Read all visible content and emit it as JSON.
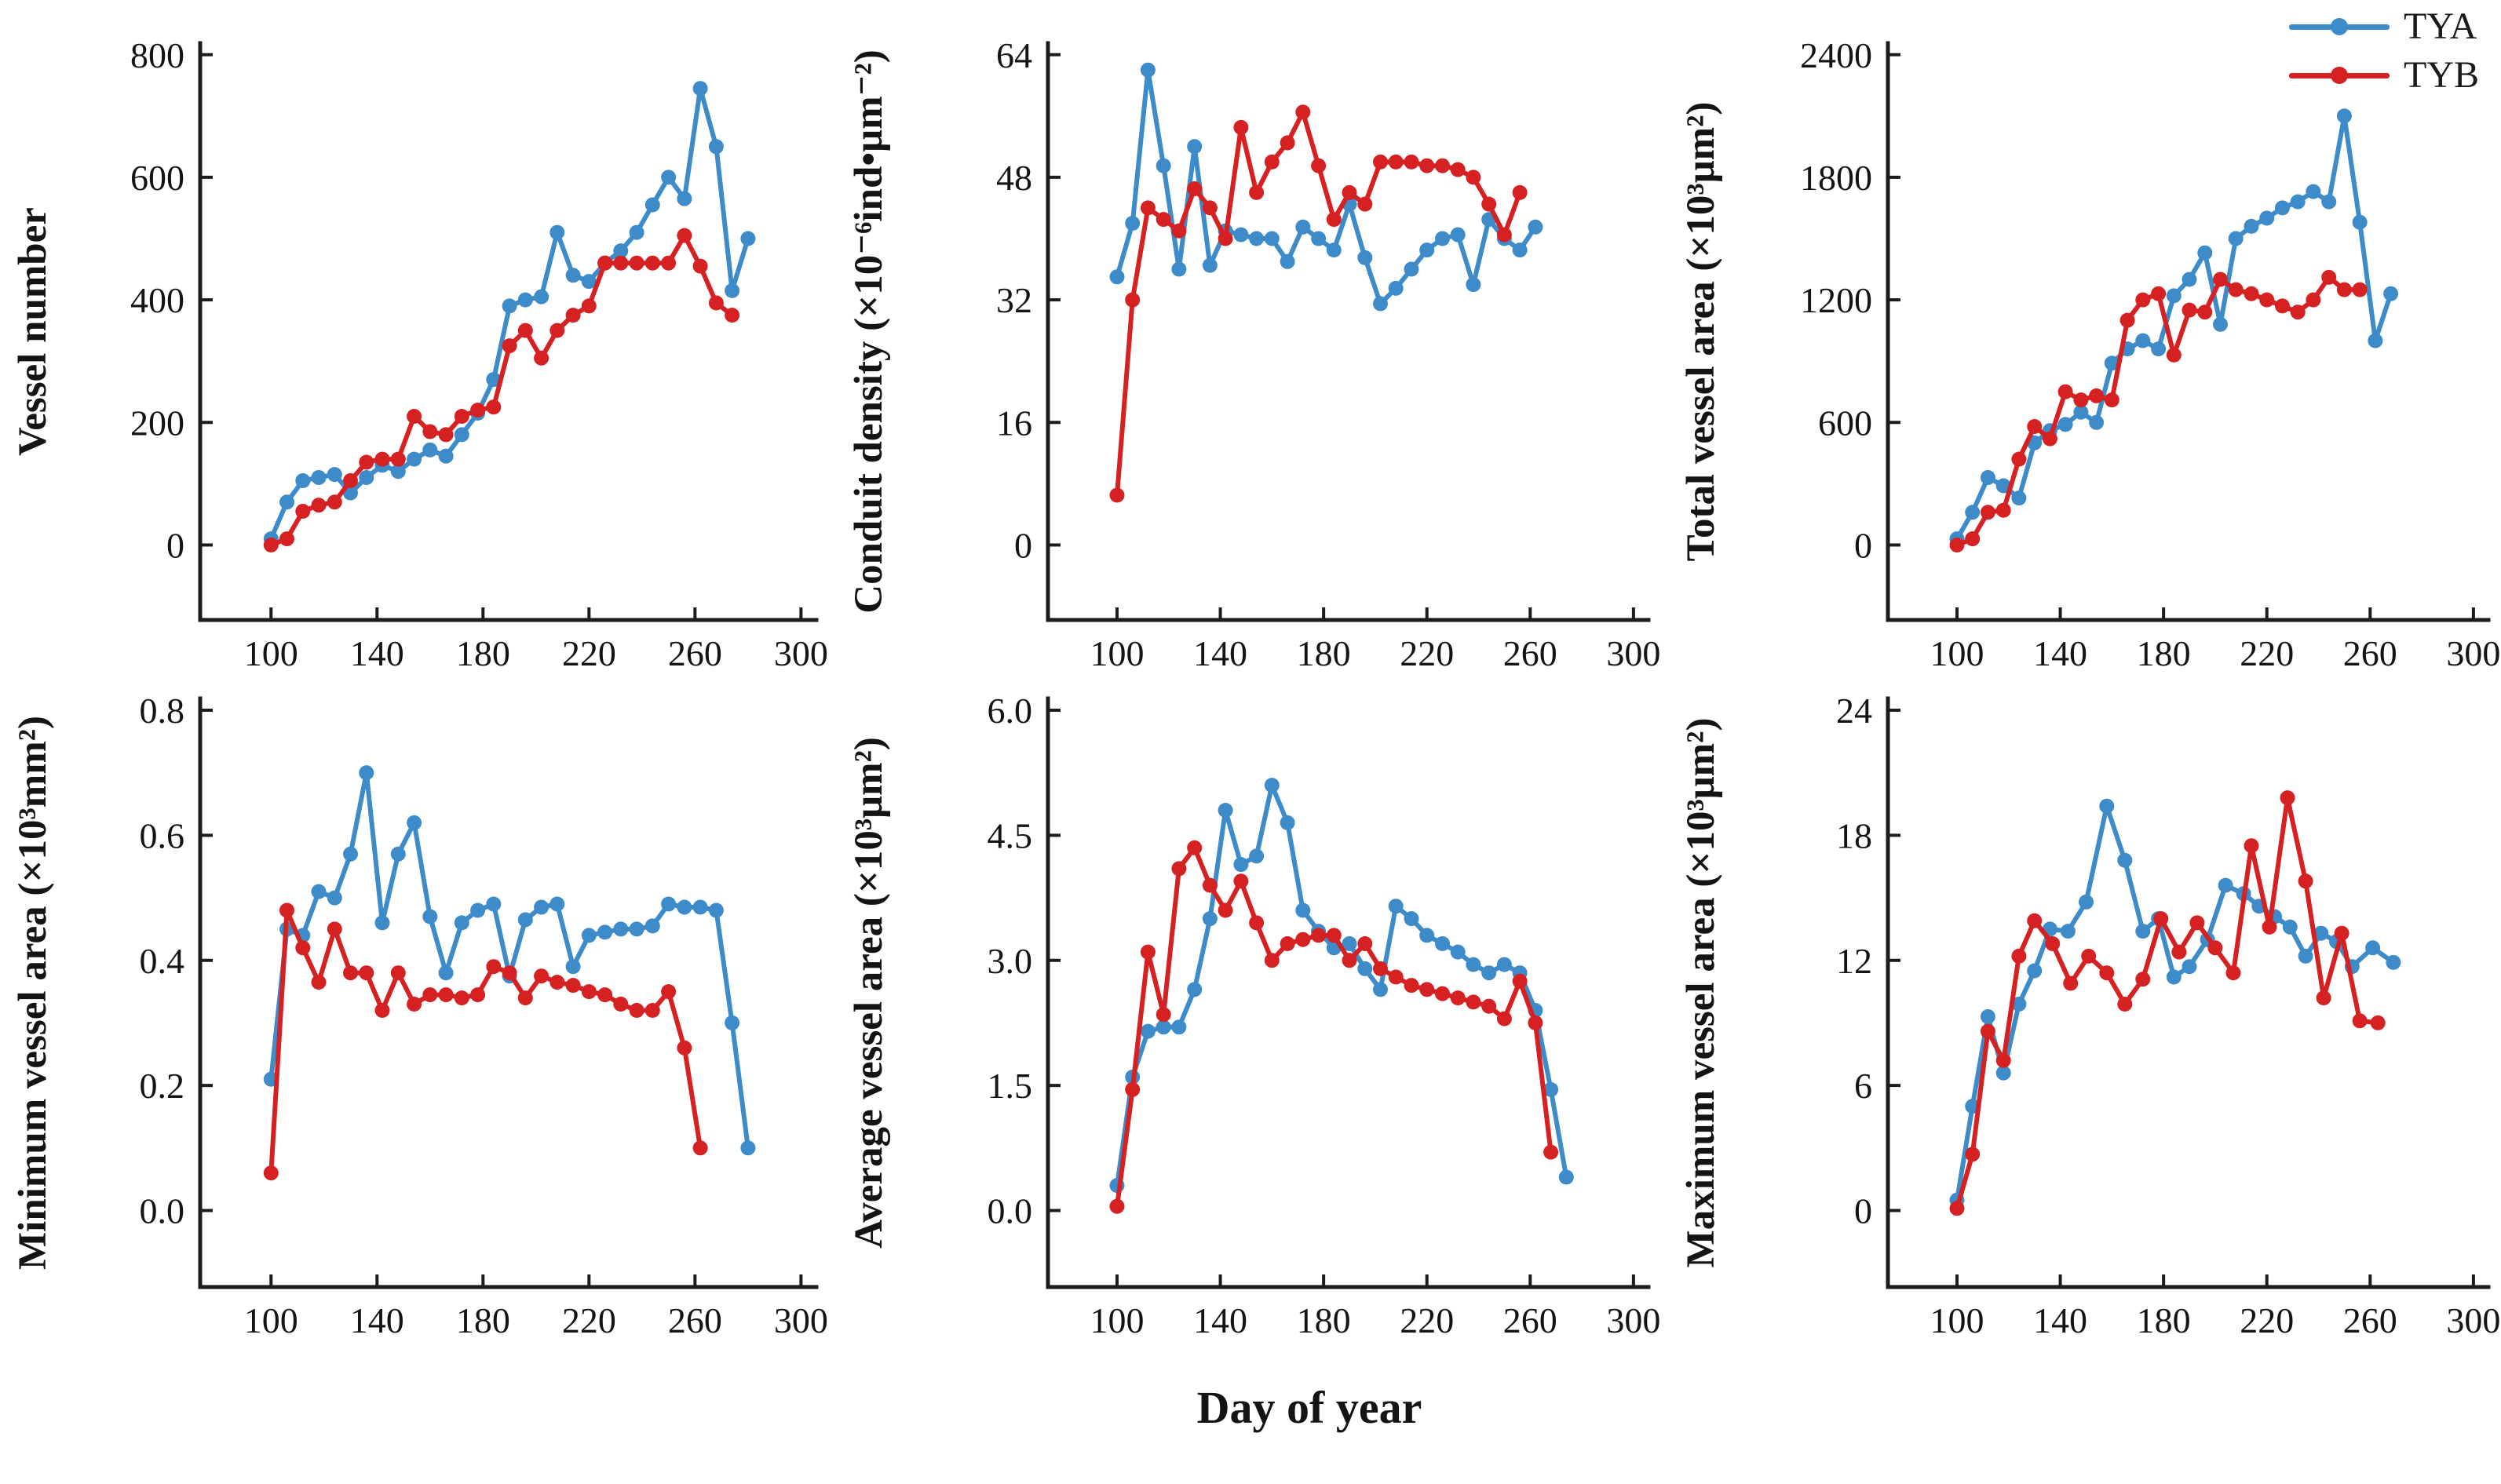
{
  "figure": {
    "background": "#ffffff"
  },
  "xlabel": "Day of year",
  "legend": {
    "items": [
      {
        "label": "TYA",
        "color_key": "tya"
      },
      {
        "label": "TYB",
        "color_key": "tyb"
      }
    ]
  },
  "colors": {
    "tya": "#3d8bc8",
    "tyb": "#d62123",
    "axis": "#1c1c1c"
  },
  "x_ticks": [
    100,
    140,
    180,
    220,
    260,
    300
  ],
  "chart_data": [
    {
      "type": "line",
      "id": "vessel-number",
      "ylabel": "Vessel number",
      "xlabel": "Day of year",
      "ylim": [
        0,
        800
      ],
      "xlim": [
        72,
        306
      ],
      "yticks": [
        0,
        200,
        400,
        600,
        800
      ],
      "ytick_labels": [
        "0",
        "200",
        "400",
        "600",
        "800"
      ],
      "xtick_labels": [
        "100",
        "140",
        "180",
        "220",
        "260",
        "300"
      ],
      "grid": false,
      "series": [
        {
          "name": "TYA",
          "x": [
            100,
            106,
            112,
            118,
            124,
            130,
            136,
            142,
            148,
            154,
            160,
            166,
            172,
            178,
            184,
            190,
            196,
            202,
            208,
            214,
            220,
            226,
            232,
            238,
            244,
            250,
            256,
            262,
            268,
            274,
            280
          ],
          "y": [
            10,
            70,
            105,
            110,
            115,
            85,
            110,
            130,
            120,
            140,
            155,
            145,
            180,
            215,
            270,
            390,
            400,
            405,
            510,
            440,
            430,
            460,
            480,
            510,
            555,
            600,
            565,
            745,
            650,
            415,
            500
          ]
        },
        {
          "name": "TYB",
          "x": [
            100,
            106,
            112,
            118,
            124,
            130,
            136,
            142,
            148,
            154,
            160,
            166,
            172,
            178,
            184,
            190,
            196,
            202,
            208,
            214,
            220,
            226,
            232,
            238,
            244,
            250,
            256,
            262,
            268,
            274
          ],
          "y": [
            0,
            10,
            55,
            65,
            70,
            105,
            135,
            140,
            140,
            210,
            185,
            180,
            210,
            220,
            225,
            325,
            350,
            305,
            350,
            375,
            390,
            460,
            460,
            460,
            460,
            460,
            505,
            455,
            395,
            375
          ]
        }
      ]
    },
    {
      "type": "line",
      "id": "conduit-density",
      "ylabel": "Conduit density (×10⁻⁶ind•μm⁻²)",
      "xlabel": "Day of year",
      "ylim": [
        0,
        64
      ],
      "xlim": [
        72,
        306
      ],
      "yticks": [
        0,
        16,
        32,
        48,
        64
      ],
      "ytick_labels": [
        "0",
        "16",
        "32",
        "48",
        "64"
      ],
      "xtick_labels": [
        "100",
        "140",
        "180",
        "220",
        "260",
        "300"
      ],
      "grid": false,
      "series": [
        {
          "name": "TYA",
          "x": [
            100,
            106,
            112,
            118,
            124,
            130,
            136,
            142,
            148,
            154,
            160,
            166,
            172,
            178,
            184,
            190,
            196,
            202,
            208,
            214,
            220,
            226,
            232,
            238,
            244,
            250,
            256,
            262
          ],
          "y": [
            35,
            42,
            62,
            49.5,
            36,
            52,
            36.5,
            41,
            40.5,
            40,
            40,
            37,
            41.5,
            40,
            38.5,
            44.5,
            37.5,
            31.5,
            33.5,
            36,
            38.5,
            40,
            40.5,
            34,
            42.5,
            40,
            38.5,
            41.5
          ]
        },
        {
          "name": "TYB",
          "x": [
            100,
            106,
            112,
            118,
            124,
            130,
            136,
            142,
            148,
            154,
            160,
            166,
            172,
            178,
            184,
            190,
            196,
            202,
            208,
            214,
            220,
            226,
            232,
            238,
            244,
            250,
            256
          ],
          "y": [
            6.5,
            32,
            44,
            42.5,
            41,
            46.5,
            44,
            40,
            54.5,
            46,
            50,
            52.5,
            56.5,
            49.5,
            42.5,
            46,
            44.5,
            50,
            50,
            50,
            49.5,
            49.5,
            49,
            48,
            44.5,
            40.5,
            46
          ]
        }
      ]
    },
    {
      "type": "line",
      "id": "total-vessel-area",
      "ylabel": "Total vessel area (×10³μm²)",
      "xlabel": "Day of year",
      "ylim": [
        0,
        2400
      ],
      "xlim": [
        72,
        306
      ],
      "yticks": [
        0,
        600,
        1200,
        1800,
        2400
      ],
      "ytick_labels": [
        "0",
        "600",
        "1200",
        "1800",
        "2400"
      ],
      "xtick_labels": [
        "100",
        "140",
        "180",
        "220",
        "260",
        "300"
      ],
      "grid": false,
      "series": [
        {
          "name": "TYA",
          "x": [
            100,
            106,
            112,
            118,
            124,
            130,
            136,
            142,
            148,
            154,
            160,
            166,
            172,
            178,
            184,
            190,
            196,
            202,
            208,
            214,
            220,
            226,
            232,
            238,
            244,
            250,
            256,
            262,
            268
          ],
          "y": [
            30,
            160,
            330,
            290,
            230,
            500,
            560,
            590,
            650,
            600,
            890,
            960,
            1000,
            960,
            1220,
            1300,
            1430,
            1080,
            1500,
            1560,
            1600,
            1650,
            1680,
            1730,
            1680,
            2100,
            1580,
            1000,
            1230
          ]
        },
        {
          "name": "TYB",
          "x": [
            100,
            106,
            112,
            118,
            124,
            130,
            136,
            142,
            148,
            154,
            160,
            166,
            172,
            178,
            184,
            190,
            196,
            202,
            208,
            214,
            220,
            226,
            232,
            238,
            244,
            250,
            256
          ],
          "y": [
            0,
            30,
            160,
            170,
            420,
            580,
            520,
            750,
            710,
            730,
            710,
            1100,
            1200,
            1230,
            930,
            1150,
            1140,
            1300,
            1250,
            1230,
            1200,
            1170,
            1140,
            1200,
            1310,
            1250,
            1250
          ]
        }
      ]
    },
    {
      "type": "line",
      "id": "minimum-vessel-area",
      "ylabel": "Minimum vessel area (×10³mm²)",
      "xlabel": "Day of year",
      "ylim": [
        0,
        0.8
      ],
      "xlim": [
        72,
        306
      ],
      "yticks": [
        0,
        0.2,
        0.4,
        0.6,
        0.8
      ],
      "ytick_labels": [
        "0.0",
        "0.2",
        "0.4",
        "0.6",
        "0.8"
      ],
      "xtick_labels": [
        "100",
        "140",
        "180",
        "220",
        "260",
        "300"
      ],
      "grid": false,
      "series": [
        {
          "name": "TYA",
          "x": [
            100,
            106,
            112,
            118,
            124,
            130,
            136,
            142,
            148,
            154,
            160,
            166,
            172,
            178,
            184,
            190,
            196,
            202,
            208,
            214,
            220,
            226,
            232,
            238,
            244,
            250,
            256,
            262,
            268,
            274,
            280
          ],
          "y": [
            0.21,
            0.45,
            0.44,
            0.51,
            0.5,
            0.57,
            0.7,
            0.46,
            0.57,
            0.62,
            0.47,
            0.38,
            0.46,
            0.48,
            0.49,
            0.375,
            0.465,
            0.485,
            0.49,
            0.39,
            0.44,
            0.445,
            0.45,
            0.45,
            0.455,
            0.49,
            0.485,
            0.485,
            0.48,
            0.3,
            0.1
          ]
        },
        {
          "name": "TYB",
          "x": [
            100,
            106,
            112,
            118,
            124,
            130,
            136,
            142,
            148,
            154,
            160,
            166,
            172,
            178,
            184,
            190,
            196,
            202,
            208,
            214,
            220,
            226,
            232,
            238,
            244,
            250,
            256,
            262
          ],
          "y": [
            0.06,
            0.48,
            0.42,
            0.365,
            0.45,
            0.38,
            0.38,
            0.32,
            0.38,
            0.33,
            0.345,
            0.345,
            0.34,
            0.345,
            0.39,
            0.38,
            0.34,
            0.375,
            0.365,
            0.36,
            0.35,
            0.345,
            0.33,
            0.32,
            0.32,
            0.35,
            0.26,
            0.1
          ]
        }
      ]
    },
    {
      "type": "line",
      "id": "average-vessel-area",
      "ylabel": "Average vessel area (×10³μm²)",
      "xlabel": "Day of year",
      "ylim": [
        0,
        6.0
      ],
      "xlim": [
        72,
        306
      ],
      "yticks": [
        0,
        1.5,
        3.0,
        4.5,
        6.0
      ],
      "ytick_labels": [
        "0.0",
        "1.5",
        "3.0",
        "4.5",
        "6.0"
      ],
      "xtick_labels": [
        "100",
        "140",
        "180",
        "220",
        "260",
        "300"
      ],
      "grid": false,
      "series": [
        {
          "name": "TYA",
          "x": [
            100,
            106,
            112,
            118,
            124,
            130,
            136,
            142,
            148,
            154,
            160,
            166,
            172,
            178,
            184,
            190,
            196,
            202,
            208,
            214,
            220,
            226,
            232,
            238,
            244,
            250,
            256,
            262,
            268,
            274
          ],
          "y": [
            0.3,
            1.6,
            2.15,
            2.2,
            2.2,
            2.65,
            3.5,
            4.8,
            4.15,
            4.25,
            5.1,
            4.65,
            3.6,
            3.35,
            3.15,
            3.2,
            2.9,
            2.65,
            3.65,
            3.5,
            3.3,
            3.2,
            3.1,
            2.95,
            2.85,
            2.95,
            2.85,
            2.4,
            1.45,
            0.4
          ]
        },
        {
          "name": "TYB",
          "x": [
            100,
            106,
            112,
            118,
            124,
            130,
            136,
            142,
            148,
            154,
            160,
            166,
            172,
            178,
            184,
            190,
            196,
            202,
            208,
            214,
            220,
            226,
            232,
            238,
            244,
            250,
            256,
            262,
            268
          ],
          "y": [
            0.05,
            1.45,
            3.1,
            2.35,
            4.1,
            4.35,
            3.9,
            3.6,
            3.95,
            3.45,
            3.0,
            3.2,
            3.25,
            3.3,
            3.3,
            3.0,
            3.2,
            2.9,
            2.8,
            2.7,
            2.65,
            2.6,
            2.55,
            2.5,
            2.45,
            2.3,
            2.75,
            2.25,
            0.7
          ]
        }
      ]
    },
    {
      "type": "line",
      "id": "maximum-vessel-area",
      "ylabel": "Maximum vessel area (×10³μm²)",
      "xlabel": "Day of year",
      "ylim": [
        0,
        24
      ],
      "xlim": [
        72,
        306
      ],
      "yticks": [
        0,
        6,
        12,
        18,
        24
      ],
      "ytick_labels": [
        "0",
        "6",
        "12",
        "18",
        "24"
      ],
      "xtick_labels": [
        "100",
        "140",
        "180",
        "220",
        "260",
        "300"
      ],
      "grid": false,
      "series": [
        {
          "name": "TYA",
          "x": [
            100,
            106,
            112,
            118,
            124,
            130,
            136,
            143,
            150,
            158,
            165,
            172,
            178,
            184,
            190,
            197,
            204,
            211,
            217,
            223,
            229,
            235,
            241,
            247,
            253,
            261,
            269
          ],
          "y": [
            0.5,
            5.0,
            9.3,
            6.6,
            9.9,
            11.5,
            13.5,
            13.4,
            14.8,
            19.4,
            16.8,
            13.4,
            14.0,
            11.2,
            11.7,
            13.0,
            15.6,
            15.2,
            14.6,
            14.1,
            13.6,
            12.2,
            13.3,
            12.9,
            11.7,
            12.6,
            11.9
          ]
        },
        {
          "name": "TYB",
          "x": [
            100,
            106,
            112,
            118,
            124,
            130,
            137,
            144,
            151,
            158,
            165,
            172,
            179,
            186,
            193,
            200,
            207,
            214,
            221,
            228,
            235,
            242,
            249,
            256,
            263
          ],
          "y": [
            0.1,
            2.7,
            8.6,
            7.2,
            12.2,
            13.9,
            12.8,
            10.9,
            12.2,
            11.4,
            9.9,
            11.1,
            14.0,
            12.4,
            13.8,
            12.6,
            11.4,
            17.5,
            13.6,
            19.8,
            15.8,
            10.2,
            13.3,
            9.1,
            9.0
          ]
        }
      ]
    }
  ]
}
